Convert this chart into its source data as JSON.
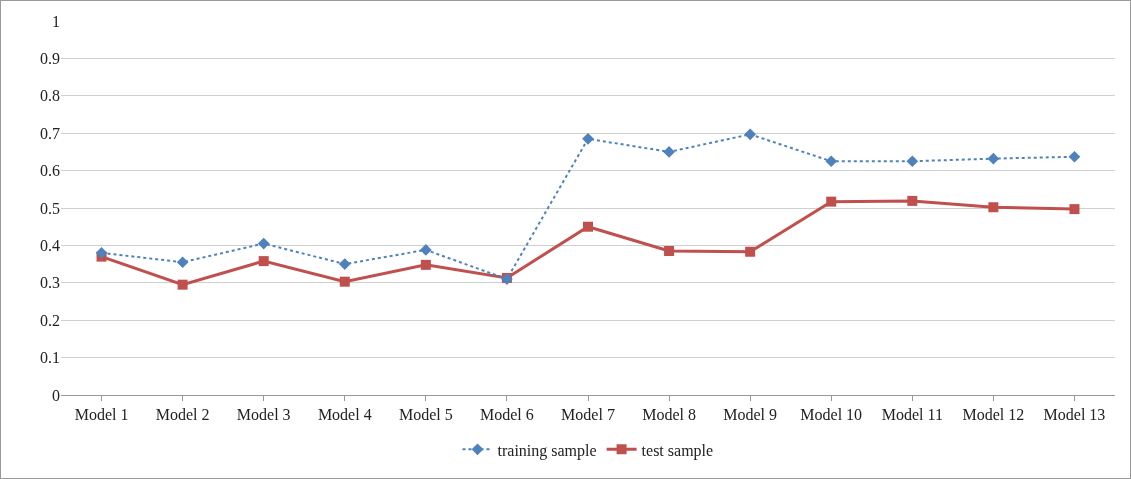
{
  "chart_data": {
    "type": "line",
    "categories": [
      "Model 1",
      "Model 2",
      "Model 3",
      "Model 4",
      "Model 5",
      "Model 6",
      "Model 7",
      "Model 8",
      "Model 9",
      "Model 10",
      "Model 11",
      "Model 12",
      "Model 13"
    ],
    "series": [
      {
        "name": "training sample",
        "color": "#4f81bd",
        "marker": "diamond",
        "line_style": "dotted",
        "values": [
          0.38,
          0.355,
          0.405,
          0.35,
          0.388,
          0.31,
          0.685,
          0.65,
          0.697,
          0.625,
          0.625,
          0.632,
          0.637
        ]
      },
      {
        "name": "test sample",
        "color": "#c0504d",
        "marker": "square",
        "line_style": "solid",
        "values": [
          0.37,
          0.295,
          0.358,
          0.303,
          0.348,
          0.313,
          0.45,
          0.385,
          0.383,
          0.517,
          0.519,
          0.502,
          0.497
        ]
      }
    ],
    "ylim": [
      0,
      1
    ],
    "yticks": [
      0,
      0.1,
      0.2,
      0.3,
      0.4,
      0.5,
      0.6,
      0.7,
      0.8,
      0.9,
      1
    ],
    "grid": "y",
    "legend": "bottom"
  }
}
